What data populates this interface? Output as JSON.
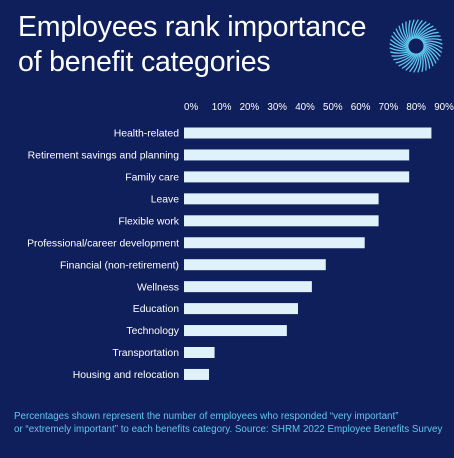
{
  "header": {
    "title_line1": "Employees rank importance",
    "title_line2": "of benefit categories"
  },
  "logo": {
    "icon": "starburst-logo-icon"
  },
  "colors": {
    "background": "#0f1f5c",
    "bar": "#dff1fb",
    "text": "#ffffff",
    "footnote": "#5fc7ee"
  },
  "chart_data": {
    "type": "bar",
    "orientation": "horizontal",
    "categories": [
      "Health-related",
      "Retirement savings and planning",
      "Family care",
      "Leave",
      "Flexible work",
      "Professional/career development",
      "Financial (non-retirement)",
      "Wellness",
      "Education",
      "Technology",
      "Transportation",
      "Housing and relocation"
    ],
    "values": [
      89,
      81,
      81,
      70,
      70,
      65,
      51,
      46,
      41,
      37,
      11,
      9
    ],
    "xticks": [
      "0%",
      "10%",
      "20%",
      "30%",
      "40%",
      "50%",
      "60%",
      "70%",
      "80%",
      "90%"
    ],
    "xlim": [
      0,
      90
    ],
    "axis_position": "top",
    "grid": false,
    "legend": "none",
    "unit": "%"
  },
  "footnote": {
    "line1": "Percentages shown represent the number of employees who responded “very important”",
    "line2": "or “extremely important” to each benefits category. Source: SHRM 2022 Employee Benefits Survey"
  }
}
